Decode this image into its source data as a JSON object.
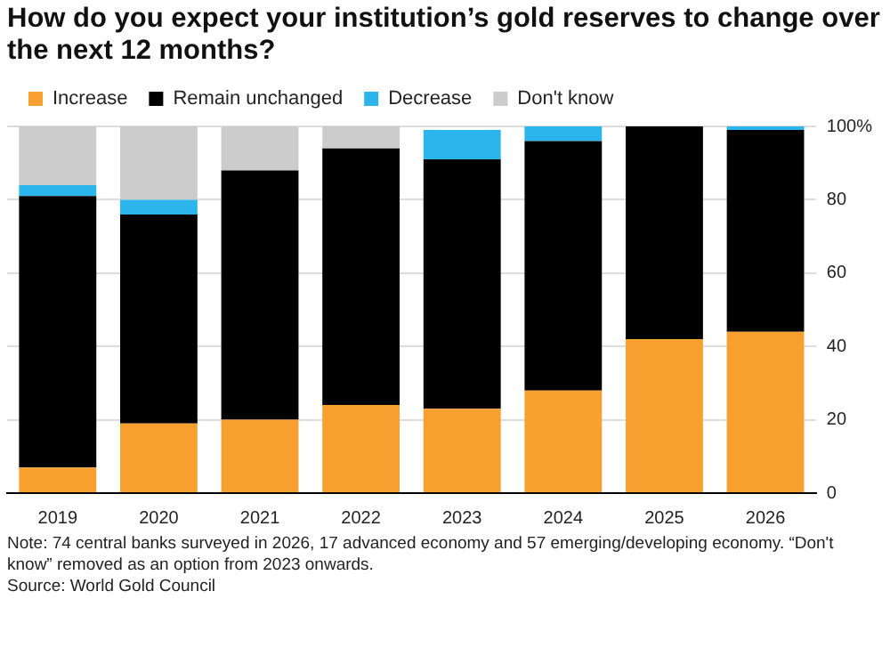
{
  "chart_data": {
    "type": "bar",
    "title": "How do you expect your institution’s gold reserves to change over the next 12 months?",
    "categories": [
      "2019",
      "2020",
      "2021",
      "2022",
      "2023",
      "2024",
      "2025",
      "2026"
    ],
    "stacked": true,
    "series": [
      {
        "name": "Increase",
        "color": "#f7a030",
        "values": [
          7,
          19,
          20,
          24,
          23,
          28,
          42,
          44
        ]
      },
      {
        "name": "Remain unchanged",
        "color": "#000000",
        "values": [
          74,
          57,
          68,
          70,
          68,
          68,
          58,
          55
        ]
      },
      {
        "name": "Decrease",
        "color": "#2bb5ec",
        "values": [
          3,
          4,
          0,
          0,
          8,
          4,
          0,
          1
        ]
      },
      {
        "name": "Don't know",
        "color": "#cccccc",
        "values": [
          16,
          20,
          12,
          6,
          0,
          0,
          0,
          0
        ]
      }
    ],
    "ylim": [
      0,
      100
    ],
    "yticks": [
      0,
      20,
      40,
      60,
      80,
      {
        "value": 100,
        "label": "100%"
      }
    ],
    "grid": "y",
    "legend": "top left",
    "annotations": [
      "Note: 74 central banks surveyed in 2026, 17 advanced economy and 57 emerging/developing economy. “Don't know” removed as an option from 2023 onwards.",
      "Source: World Gold Council"
    ]
  }
}
